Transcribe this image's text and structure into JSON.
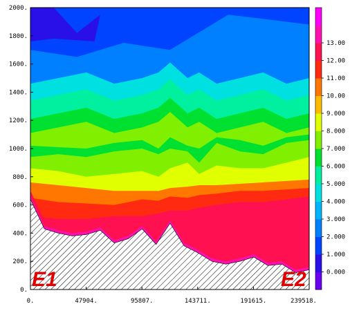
{
  "chart_data": {
    "type": "heatmap",
    "title": "",
    "xlabel": "",
    "ylabel": "",
    "xlim": [
      0,
      239518
    ],
    "ylim": [
      0,
      2000
    ],
    "x_ticks": [
      "0.",
      "47904.",
      "95807.",
      "143711.",
      "191615.",
      "239518."
    ],
    "y_ticks": [
      "0.",
      "200.",
      "400.",
      "600.",
      "800.",
      "1000.",
      "1200.",
      "1400.",
      "1600.",
      "1800.",
      "2000."
    ],
    "colorbar": {
      "labels": [
        "0.000",
        "1.000",
        "2.000",
        "3.000",
        "4.000",
        "5.000",
        "6.000",
        "7.000",
        "8.000",
        "9.000",
        "10.00",
        "11.00",
        "12.00",
        "13.00"
      ],
      "colors": [
        "#6a00f0",
        "#2a10e8",
        "#0044ff",
        "#0080ff",
        "#00b4ff",
        "#00e0e0",
        "#00f0a0",
        "#00e030",
        "#80f000",
        "#e0ff00",
        "#ffbb00",
        "#ff7700",
        "#ff2a10",
        "#ff1050",
        "#ff10b0",
        "#ff00ff"
      ]
    },
    "contour_levels": [
      {
        "value": 6,
        "x": [
          0,
          24000,
          48000,
          72000,
          96000,
          110000,
          120000,
          135000,
          145000,
          160000,
          180000,
          200000,
          220000,
          239518
        ],
        "y": [
          1020,
          1010,
          1000,
          1040,
          1060,
          1000,
          1080,
          1020,
          1000,
          1080,
          1060,
          1020,
          1080,
          1100
        ]
      },
      {
        "value": 7,
        "x": [
          0,
          24000,
          48000,
          72000,
          96000,
          110000,
          120000,
          135000,
          145000,
          160000,
          180000,
          200000,
          220000,
          239518
        ],
        "y": [
          940,
          960,
          940,
          980,
          1000,
          960,
          1000,
          980,
          900,
          1040,
          980,
          960,
          1040,
          1060
        ]
      },
      {
        "value": 8,
        "x": [
          0,
          24000,
          48000,
          72000,
          96000,
          110000,
          120000,
          135000,
          145000,
          160000,
          180000,
          200000,
          220000,
          239518
        ],
        "y": [
          860,
          840,
          800,
          820,
          840,
          800,
          860,
          900,
          820,
          880,
          860,
          860,
          900,
          940
        ]
      },
      {
        "value": 9,
        "x": [
          0,
          24000,
          48000,
          72000,
          96000,
          110000,
          120000,
          135000,
          145000,
          160000,
          180000,
          200000,
          220000,
          239518
        ],
        "y": [
          760,
          740,
          720,
          700,
          700,
          700,
          720,
          730,
          740,
          740,
          750,
          760,
          770,
          780
        ]
      },
      {
        "value": 10,
        "x": [
          0,
          24000,
          48000,
          72000,
          96000,
          110000,
          120000,
          135000,
          145000,
          160000,
          180000,
          200000,
          220000,
          239518
        ],
        "y": [
          650,
          620,
          610,
          600,
          640,
          630,
          660,
          650,
          670,
          680,
          700,
          700,
          710,
          720
        ]
      },
      {
        "value": 11,
        "x": [
          0,
          24000,
          48000,
          72000,
          96000,
          110000,
          120000,
          135000,
          145000,
          160000,
          180000,
          200000,
          220000,
          239518
        ],
        "y": [
          520,
          500,
          500,
          520,
          520,
          540,
          560,
          560,
          580,
          600,
          620,
          620,
          640,
          660
        ]
      }
    ],
    "terrain": {
      "x": [
        0,
        12000,
        24000,
        36000,
        48000,
        60000,
        72000,
        84000,
        96000,
        108000,
        120000,
        132000,
        144000,
        156000,
        168000,
        180000,
        192000,
        204000,
        216000,
        228000,
        239518
      ],
      "y": [
        640,
        430,
        400,
        380,
        390,
        420,
        330,
        360,
        430,
        320,
        470,
        310,
        260,
        200,
        180,
        200,
        230,
        170,
        180,
        120,
        140
      ]
    },
    "grid": false,
    "legend": "right",
    "annotations": [
      "E1",
      "E2"
    ]
  }
}
